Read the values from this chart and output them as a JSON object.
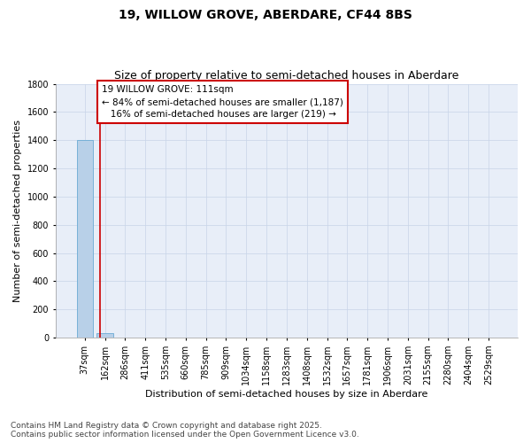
{
  "title_line1": "19, WILLOW GROVE, ABERDARE, CF44 8BS",
  "title_line2": "Size of property relative to semi-detached houses in Aberdare",
  "xlabel": "Distribution of semi-detached houses by size in Aberdare",
  "ylabel": "Number of semi-detached properties",
  "categories": [
    "37sqm",
    "162sqm",
    "286sqm",
    "411sqm",
    "535sqm",
    "660sqm",
    "785sqm",
    "909sqm",
    "1034sqm",
    "1158sqm",
    "1283sqm",
    "1408sqm",
    "1532sqm",
    "1657sqm",
    "1781sqm",
    "1906sqm",
    "2031sqm",
    "2155sqm",
    "2280sqm",
    "2404sqm",
    "2529sqm"
  ],
  "values": [
    1400,
    30,
    0,
    0,
    0,
    0,
    0,
    0,
    0,
    0,
    0,
    0,
    0,
    0,
    0,
    0,
    0,
    0,
    0,
    0,
    0
  ],
  "bar_color": "#b8d0e8",
  "bar_edge_color": "#6aaad4",
  "grid_color": "#c8d4e8",
  "background_color": "#e8eef8",
  "annotation_text": "19 WILLOW GROVE: 111sqm\n← 84% of semi-detached houses are smaller (1,187)\n   16% of semi-detached houses are larger (219) →",
  "annotation_box_color": "#ffffff",
  "annotation_border_color": "#cc0000",
  "red_line_x": 0.74,
  "ylim": [
    0,
    1800
  ],
  "yticks": [
    0,
    200,
    400,
    600,
    800,
    1000,
    1200,
    1400,
    1600,
    1800
  ],
  "footer_line1": "Contains HM Land Registry data © Crown copyright and database right 2025.",
  "footer_line2": "Contains public sector information licensed under the Open Government Licence v3.0.",
  "title_fontsize": 10,
  "subtitle_fontsize": 9,
  "axis_label_fontsize": 8,
  "tick_fontsize": 7,
  "annotation_fontsize": 7.5,
  "footer_fontsize": 6.5
}
